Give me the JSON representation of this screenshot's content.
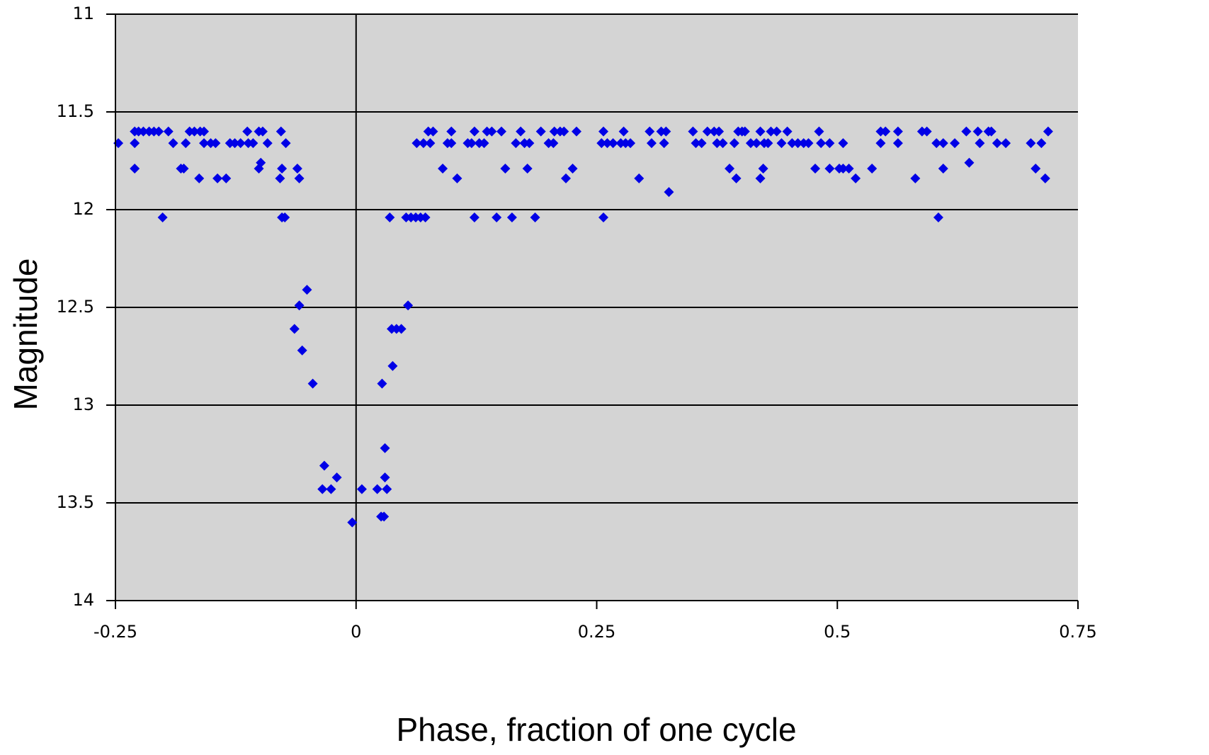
{
  "chart_data": {
    "type": "scatter",
    "x_label": "Phase, fraction of one cycle",
    "y_label": "Magnitude",
    "xlim": [
      -0.25,
      0.75
    ],
    "xticks": [
      -0.25,
      0,
      0.25,
      0.5,
      0.75
    ],
    "ylim": [
      14,
      11
    ],
    "yticks": [
      11,
      11.5,
      12,
      12.5,
      13,
      13.5,
      14
    ],
    "grid": true,
    "background": "#d4d4d4",
    "series": [
      {
        "color": "#0000e6",
        "x": [
          -0.247,
          -0.23,
          -0.23,
          -0.23,
          -0.226,
          -0.221,
          -0.215,
          -0.21,
          -0.205,
          -0.201,
          -0.195,
          -0.19,
          -0.182,
          -0.179,
          -0.177,
          -0.173,
          -0.168,
          -0.163,
          -0.162,
          -0.158,
          -0.158,
          -0.151,
          -0.146,
          -0.144,
          -0.135,
          -0.131,
          -0.126,
          -0.12,
          -0.113,
          -0.112,
          -0.107,
          -0.101,
          -0.099,
          -0.101,
          -0.097,
          -0.092,
          -0.078,
          -0.079,
          -0.077,
          -0.077,
          -0.074,
          -0.073,
          -0.061,
          -0.059,
          -0.064,
          -0.059,
          -0.056,
          -0.051,
          -0.045,
          -0.035,
          -0.033,
          -0.026,
          -0.02,
          -0.004,
          0.006,
          0.022,
          0.026,
          0.029,
          0.032,
          0.03,
          0.03,
          0.027,
          0.038,
          0.037,
          0.042,
          0.047,
          0.054,
          0.035,
          0.052,
          0.057,
          0.062,
          0.067,
          0.072,
          0.063,
          0.07,
          0.075,
          0.077,
          0.08,
          0.09,
          0.095,
          0.099,
          0.099,
          0.105,
          0.116,
          0.12,
          0.123,
          0.123,
          0.128,
          0.133,
          0.136,
          0.141,
          0.146,
          0.151,
          0.155,
          0.162,
          0.166,
          0.171,
          0.175,
          0.178,
          0.18,
          0.186,
          0.192,
          0.2,
          0.205,
          0.206,
          0.212,
          0.216,
          0.218,
          0.225,
          0.229,
          0.257,
          0.255,
          0.257,
          0.261,
          0.267,
          0.275,
          0.278,
          0.28,
          0.285,
          0.294,
          0.305,
          0.307,
          0.317,
          0.32,
          0.322,
          0.325,
          0.35,
          0.353,
          0.359,
          0.365,
          0.372,
          0.375,
          0.377,
          0.381,
          0.388,
          0.393,
          0.395,
          0.397,
          0.401,
          0.404,
          0.41,
          0.416,
          0.42,
          0.42,
          0.423,
          0.424,
          0.428,
          0.431,
          0.437,
          0.442,
          0.448,
          0.453,
          0.459,
          0.465,
          0.47,
          0.477,
          0.481,
          0.483,
          0.492,
          0.492,
          0.502,
          0.506,
          0.506,
          0.512,
          0.519,
          0.536,
          0.545,
          0.545,
          0.55,
          0.563,
          0.563,
          0.581,
          0.588,
          0.593,
          0.603,
          0.605,
          0.61,
          0.61,
          0.622,
          0.634,
          0.637,
          0.646,
          0.648,
          0.657,
          0.66,
          0.666,
          0.675,
          0.701,
          0.706,
          0.712,
          0.716,
          0.719
        ],
        "values": [
          11.66,
          11.79,
          11.66,
          11.6,
          11.6,
          11.6,
          11.6,
          11.6,
          11.6,
          12.04,
          11.6,
          11.66,
          11.79,
          11.79,
          11.66,
          11.6,
          11.6,
          11.84,
          11.6,
          11.6,
          11.66,
          11.66,
          11.66,
          11.84,
          11.84,
          11.66,
          11.66,
          11.66,
          11.6,
          11.66,
          11.66,
          11.79,
          11.76,
          11.6,
          11.6,
          11.66,
          11.6,
          11.84,
          11.79,
          12.04,
          12.04,
          11.66,
          11.79,
          11.84,
          12.61,
          12.49,
          12.72,
          12.41,
          12.89,
          13.43,
          13.31,
          13.43,
          13.37,
          13.6,
          13.43,
          13.43,
          13.57,
          13.57,
          13.43,
          13.37,
          13.22,
          12.89,
          12.8,
          12.61,
          12.61,
          12.61,
          12.49,
          12.04,
          12.04,
          12.04,
          12.04,
          12.04,
          12.04,
          11.66,
          11.66,
          11.6,
          11.66,
          11.6,
          11.79,
          11.66,
          11.6,
          11.66,
          11.84,
          11.66,
          11.66,
          12.04,
          11.6,
          11.66,
          11.66,
          11.6,
          11.6,
          12.04,
          11.6,
          11.79,
          12.04,
          11.66,
          11.6,
          11.66,
          11.79,
          11.66,
          12.04,
          11.6,
          11.66,
          11.66,
          11.6,
          11.6,
          11.6,
          11.84,
          11.79,
          11.6,
          11.6,
          11.66,
          12.04,
          11.66,
          11.66,
          11.66,
          11.6,
          11.66,
          11.66,
          11.84,
          11.6,
          11.66,
          11.6,
          11.66,
          11.6,
          11.91,
          11.6,
          11.66,
          11.66,
          11.6,
          11.6,
          11.66,
          11.6,
          11.66,
          11.79,
          11.66,
          11.84,
          11.6,
          11.6,
          11.6,
          11.66,
          11.66,
          11.6,
          11.84,
          11.79,
          11.66,
          11.66,
          11.6,
          11.6,
          11.66,
          11.6,
          11.66,
          11.66,
          11.66,
          11.66,
          11.79,
          11.6,
          11.66,
          11.79,
          11.66,
          11.79,
          11.66,
          11.79,
          11.79,
          11.84,
          11.79,
          11.6,
          11.66,
          11.6,
          11.6,
          11.66,
          11.84,
          11.6,
          11.6,
          11.66,
          12.04,
          11.79,
          11.66,
          11.66,
          11.6,
          11.76,
          11.6,
          11.66,
          11.6,
          11.6,
          11.66,
          11.66,
          11.66,
          11.79,
          11.66,
          11.84,
          11.6
        ]
      }
    ]
  }
}
